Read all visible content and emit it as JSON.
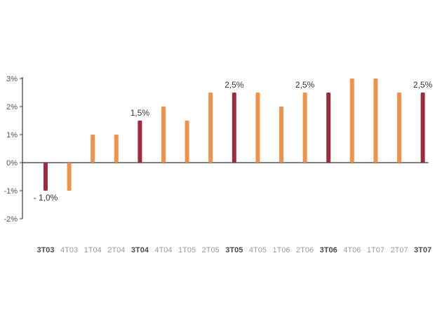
{
  "chart_data": {
    "type": "bar",
    "categories": [
      "3T03",
      "4T03",
      "1T04",
      "2T04",
      "3T04",
      "4T04",
      "1T05",
      "2T05",
      "3T05",
      "4T05",
      "1T06",
      "2T06",
      "3T06",
      "4T06",
      "1T07",
      "2T07",
      "3T07"
    ],
    "values": [
      -1.0,
      -1.0,
      1.0,
      1.0,
      1.5,
      2.0,
      1.5,
      2.5,
      2.5,
      2.5,
      2.0,
      2.5,
      2.5,
      3.0,
      3.0,
      2.5,
      2.5
    ],
    "highlighted": [
      true,
      false,
      false,
      false,
      true,
      false,
      false,
      false,
      true,
      false,
      false,
      false,
      true,
      false,
      false,
      false,
      true
    ],
    "data_labels": [
      {
        "index": 0,
        "text": "- 1,0%"
      },
      {
        "index": 4,
        "text": "1,5%"
      },
      {
        "index": 8,
        "text": "2,5%"
      },
      {
        "index": 11,
        "text": "2,5%"
      },
      {
        "index": 16,
        "text": "2,5%"
      }
    ],
    "y_ticks": [
      {
        "value": 3,
        "label": "3%"
      },
      {
        "value": 2,
        "label": "2%"
      },
      {
        "value": 1,
        "label": "1%"
      },
      {
        "value": 0,
        "label": "0%"
      },
      {
        "value": -1,
        "label": "-1%"
      },
      {
        "value": -2,
        "label": "-2%"
      }
    ],
    "ylim": [
      -2,
      3
    ],
    "grid": false,
    "title": "",
    "xlabel": "",
    "ylabel": "",
    "colors": {
      "bar": "#f0914a",
      "highlight": "#9e2a3e",
      "axis": "#333333"
    }
  }
}
